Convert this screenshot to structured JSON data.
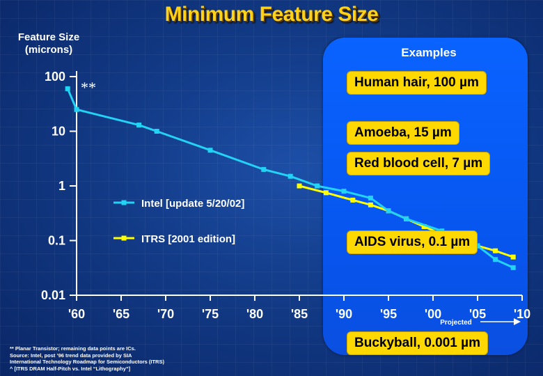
{
  "title": "Minimum Feature Size",
  "y_axis_title_line1": "Feature Size",
  "y_axis_title_line2": "(microns)",
  "examples_title": "Examples",
  "examples": [
    "Human hair, 100 µm",
    "Amoeba, 15 µm",
    "Red blood cell, 7 µm",
    "AIDS virus, 0.1 µm",
    "Buckyball, 0.001 µm"
  ],
  "projected_label": "Projected",
  "asterisks": "**",
  "footnotes": [
    "** Planar Transistor; remaining data points are ICs.",
    "Source: Intel, post ’96 trend data provided by SIA",
    "International Technology Roadmap for Semiconductors (ITRS)",
    "^ [ITRS DRAM Half-Pitch vs. Intel “Lithography”]"
  ],
  "colors": {
    "title": "#ffd21a",
    "intel": "#22d3f5",
    "itrs": "#ffff00",
    "example_bg": "#ffd800",
    "panel": "#0a5ef8"
  },
  "chart_data": {
    "type": "line",
    "title": "Minimum Feature Size",
    "ylabel": "Feature Size (microns)",
    "xlabel": "",
    "y_scale": "log",
    "ylim": [
      0.01,
      100
    ],
    "xlim": [
      1960,
      2010
    ],
    "x_tick_labels": [
      "'60",
      "'65",
      "'70",
      "'75",
      "'80",
      "'85",
      "'90",
      "'95",
      "'00",
      "'05",
      "'10"
    ],
    "x_ticks": [
      1960,
      1965,
      1970,
      1975,
      1980,
      1985,
      1990,
      1995,
      2000,
      2005,
      2010
    ],
    "y_tick_labels": [
      "100",
      "10",
      "1",
      "0.1",
      "0.01"
    ],
    "y_ticks": [
      100,
      10,
      1,
      0.1,
      0.01
    ],
    "grid": false,
    "series": [
      {
        "name": "Intel [update 5/20/02]",
        "color": "#22d3f5",
        "x": [
          1959,
          1960,
          1967,
          1969,
          1975,
          1981,
          1984,
          1987,
          1990,
          1993,
          1995,
          1997,
          2001,
          2003,
          2005,
          2007,
          2009
        ],
        "y": [
          60,
          25,
          13,
          10,
          4.5,
          2,
          1.5,
          1,
          0.8,
          0.6,
          0.35,
          0.25,
          0.15,
          0.11,
          0.08,
          0.045,
          0.032
        ]
      },
      {
        "name": "ITRS [2001 edition]",
        "color": "#ffff00",
        "x": [
          1985,
          1988,
          1991,
          1993,
          1995,
          1997,
          1999,
          2001,
          2003,
          2005,
          2007,
          2009
        ],
        "y": [
          1.0,
          0.75,
          0.55,
          0.45,
          0.35,
          0.25,
          0.18,
          0.13,
          0.1,
          0.08,
          0.065,
          0.05
        ]
      }
    ],
    "legend_position": "left-middle"
  }
}
